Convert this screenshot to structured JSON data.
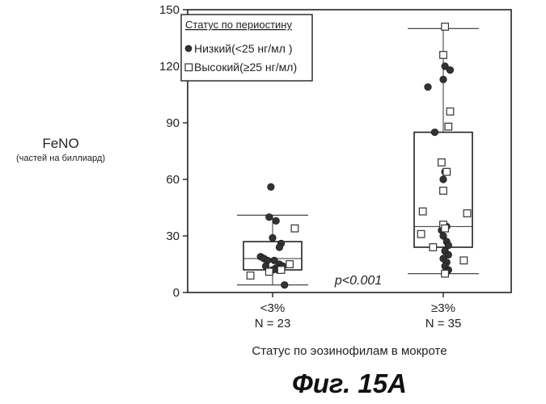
{
  "chart_data": {
    "type": "box-scatter",
    "title": "",
    "ylabel": "FeNO",
    "ylabel_sub": "(частей на биллиард)",
    "xlabel": "Статус по эозинофилам в мокроте",
    "ylim": [
      0,
      150
    ],
    "yticks": [
      "0",
      "30",
      "60",
      "90",
      "120",
      "150"
    ],
    "ytick_values": [
      0,
      30,
      60,
      90,
      120,
      150
    ],
    "categories": [
      "<3%",
      "≥3%"
    ],
    "category_n": [
      "N = 23",
      "N = 35"
    ],
    "annotation": "p<0.001",
    "legend": {
      "title": "Статус по периостину",
      "placement": "top-left",
      "entries": [
        {
          "name": "Низкий(<25 нг/мл )",
          "marker": "filled-circle"
        },
        {
          "name": "Высокий(≥25 нг/мл)",
          "marker": "open-square"
        }
      ]
    },
    "boxes": [
      {
        "category": "<3%",
        "whisker_low": 4,
        "q1": 12,
        "median": 18,
        "q3": 27,
        "whisker_high": 41
      },
      {
        "category": "≥3%",
        "whisker_low": 10,
        "q1": 24,
        "median": 35,
        "q3": 85,
        "whisker_high": 140
      }
    ],
    "series": [
      {
        "name": "Низкий(<25 нг/мл )",
        "points": [
          {
            "c": 0,
            "dx": -0.01,
            "y": 56
          },
          {
            "c": 0,
            "dx": -0.02,
            "y": 40
          },
          {
            "c": 0,
            "dx": 0.02,
            "y": 38
          },
          {
            "c": 0,
            "dx": 0.0,
            "y": 29
          },
          {
            "c": 0,
            "dx": 0.05,
            "y": 26
          },
          {
            "c": 0,
            "dx": 0.04,
            "y": 24
          },
          {
            "c": 0,
            "dx": -0.07,
            "y": 19
          },
          {
            "c": 0,
            "dx": -0.05,
            "y": 18
          },
          {
            "c": 0,
            "dx": -0.03,
            "y": 17
          },
          {
            "c": 0,
            "dx": 0.01,
            "y": 17
          },
          {
            "c": 0,
            "dx": 0.04,
            "y": 15
          },
          {
            "c": 0,
            "dx": 0.06,
            "y": 14
          },
          {
            "c": 0,
            "dx": -0.04,
            "y": 14
          },
          {
            "c": 0,
            "dx": 0.02,
            "y": 13
          },
          {
            "c": 0,
            "dx": 0.03,
            "y": 12
          },
          {
            "c": 0,
            "dx": 0.0,
            "y": 12
          },
          {
            "c": 0,
            "dx": 0.07,
            "y": 4
          },
          {
            "c": 1,
            "dx": -0.09,
            "y": 109
          },
          {
            "c": 1,
            "dx": 0.01,
            "y": 120
          },
          {
            "c": 1,
            "dx": 0.04,
            "y": 118
          },
          {
            "c": 1,
            "dx": 0.0,
            "y": 113
          },
          {
            "c": 1,
            "dx": -0.05,
            "y": 85
          },
          {
            "c": 1,
            "dx": 0.01,
            "y": 64
          },
          {
            "c": 1,
            "dx": 0.0,
            "y": 60
          },
          {
            "c": 1,
            "dx": 0.02,
            "y": 35
          },
          {
            "c": 1,
            "dx": -0.01,
            "y": 33
          },
          {
            "c": 1,
            "dx": 0.0,
            "y": 30
          },
          {
            "c": 1,
            "dx": 0.02,
            "y": 27
          },
          {
            "c": 1,
            "dx": 0.03,
            "y": 25
          },
          {
            "c": 1,
            "dx": 0.01,
            "y": 22
          },
          {
            "c": 1,
            "dx": 0.03,
            "y": 20
          },
          {
            "c": 1,
            "dx": 0.0,
            "y": 18
          },
          {
            "c": 1,
            "dx": 0.02,
            "y": 16
          },
          {
            "c": 1,
            "dx": 0.01,
            "y": 14
          },
          {
            "c": 1,
            "dx": 0.03,
            "y": 12
          },
          {
            "c": 1,
            "dx": 0.02,
            "y": 11
          }
        ]
      },
      {
        "name": "Высокий(≥25 нг/мл)",
        "points": [
          {
            "c": 0,
            "dx": 0.13,
            "y": 34
          },
          {
            "c": 0,
            "dx": 0.1,
            "y": 15
          },
          {
            "c": 0,
            "dx": -0.13,
            "y": 9
          },
          {
            "c": 0,
            "dx": 0.05,
            "y": 12
          },
          {
            "c": 0,
            "dx": -0.02,
            "y": 11
          },
          {
            "c": 1,
            "dx": 0.01,
            "y": 141
          },
          {
            "c": 1,
            "dx": 0.0,
            "y": 126
          },
          {
            "c": 1,
            "dx": 0.04,
            "y": 96
          },
          {
            "c": 1,
            "dx": 0.03,
            "y": 88
          },
          {
            "c": 1,
            "dx": -0.01,
            "y": 69
          },
          {
            "c": 1,
            "dx": 0.02,
            "y": 64
          },
          {
            "c": 1,
            "dx": 0.0,
            "y": 54
          },
          {
            "c": 1,
            "dx": -0.12,
            "y": 43
          },
          {
            "c": 1,
            "dx": 0.14,
            "y": 42
          },
          {
            "c": 1,
            "dx": -0.13,
            "y": 31
          },
          {
            "c": 1,
            "dx": 0.0,
            "y": 36
          },
          {
            "c": 1,
            "dx": 0.01,
            "y": 34
          },
          {
            "c": 1,
            "dx": -0.06,
            "y": 24
          },
          {
            "c": 1,
            "dx": 0.12,
            "y": 17
          },
          {
            "c": 1,
            "dx": 0.01,
            "y": 10
          }
        ]
      }
    ]
  }
}
